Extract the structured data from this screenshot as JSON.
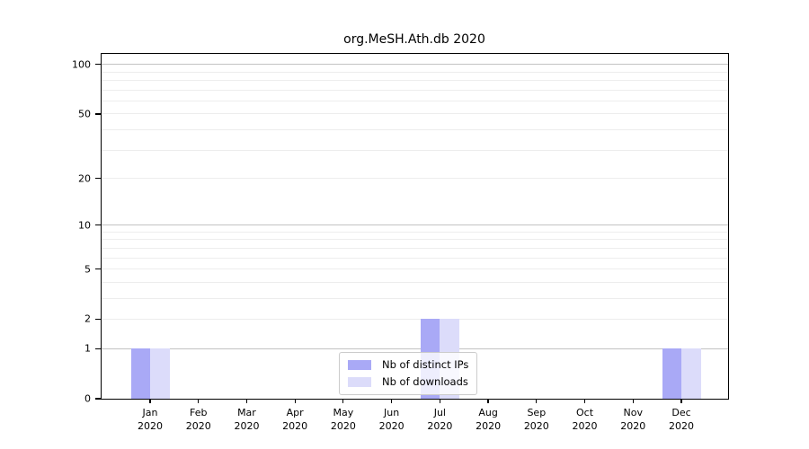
{
  "chart_data": {
    "type": "bar",
    "title": "org.MeSH.Ath.db 2020",
    "categories": [
      "Jan",
      "Feb",
      "Mar",
      "Apr",
      "May",
      "Jun",
      "Jul",
      "Aug",
      "Sep",
      "Oct",
      "Nov",
      "Dec"
    ],
    "category_sublabel": "2020",
    "series": [
      {
        "name": "Nb of distinct IPs",
        "color": "#a9a9f6",
        "values": [
          1,
          0,
          0,
          0,
          0,
          0,
          2,
          0,
          0,
          0,
          0,
          1
        ]
      },
      {
        "name": "Nb of downloads",
        "color": "#dcdcfa",
        "values": [
          1,
          0,
          0,
          0,
          0,
          0,
          2,
          0,
          0,
          0,
          0,
          1
        ]
      }
    ],
    "yscale": "log1p",
    "ylim": [
      0,
      116
    ],
    "y_major_ticks": [
      0,
      1,
      2,
      5,
      10,
      20,
      50,
      100
    ],
    "y_strong_gridlines": [
      1,
      10,
      100
    ],
    "y_minor_gridlines": [
      2,
      3,
      4,
      5,
      6,
      7,
      8,
      9,
      20,
      30,
      40,
      50,
      60,
      70,
      80,
      90
    ],
    "legend_position": "lower-center",
    "grid": true
  },
  "colors": {
    "axis": "#000000",
    "grid_strong": "#c3c3c3",
    "grid_minor": "#ededed",
    "legend_border": "#cccccc",
    "background": "#ffffff"
  }
}
